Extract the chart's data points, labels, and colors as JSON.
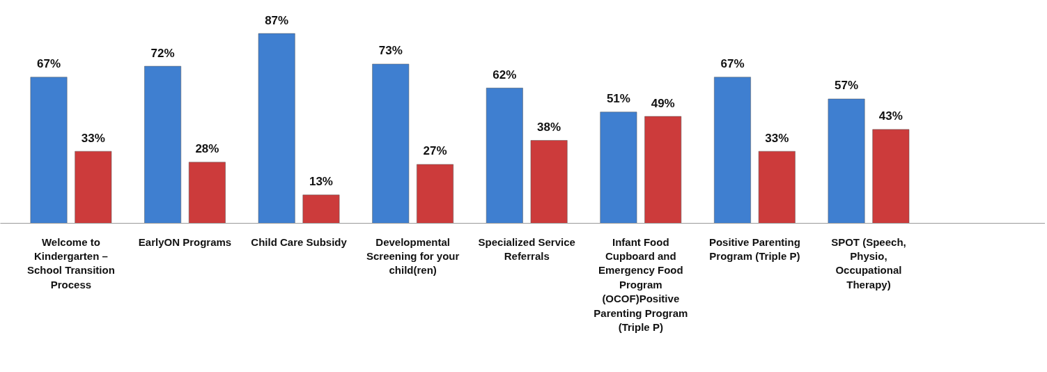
{
  "chart_data": {
    "type": "bar",
    "categories": [
      "Welcome to Kindergarten – School Transition Process",
      "EarlyON Programs",
      "Child Care Subsidy",
      "Developmental Screening for your child(ren)",
      "Specialized Service Referrals",
      "Infant Food Cupboard and Emergency Food Program (OCOF)Positive Parenting Program (Triple P)",
      "Positive Parenting Program (Triple P)",
      "SPOT (Speech, Physio, Occupational Therapy)"
    ],
    "series": [
      {
        "color": "#3f7fd0",
        "values": [
          67,
          72,
          87,
          73,
          62,
          51,
          67,
          57
        ],
        "value_labels": [
          "67%",
          "72%",
          "87%",
          "73%",
          "62%",
          "51%",
          "67%",
          "57%"
        ]
      },
      {
        "color": "#cc3b3b",
        "values": [
          33,
          28,
          13,
          27,
          38,
          49,
          33,
          43
        ],
        "value_labels": [
          "33%",
          "28%",
          "13%",
          "27%",
          "38%",
          "49%",
          "33%",
          "43%"
        ]
      }
    ],
    "tick_labels": "x",
    "grid": false
  }
}
